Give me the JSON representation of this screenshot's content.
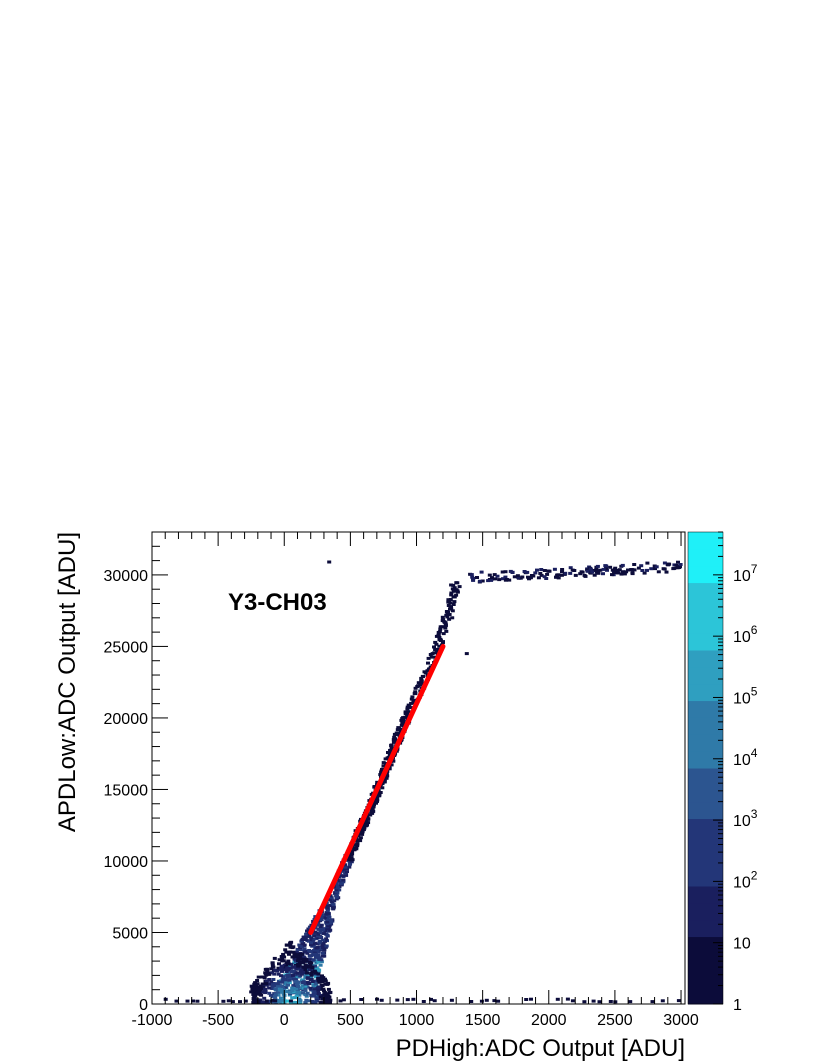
{
  "chart_data": {
    "type": "heatmap",
    "title": "",
    "annotation": "Y3-CH03",
    "xlabel": "PDHigh:ADC Output [ADU]",
    "ylabel": "APDLow:ADC Output [ADU]",
    "xlim": [
      -1000,
      3030
    ],
    "ylim": [
      0,
      33000
    ],
    "x_ticks": [
      -1000,
      -500,
      0,
      500,
      1000,
      1500,
      2000,
      2500,
      3000
    ],
    "x_tick_labels": [
      "-1000",
      "-500",
      "0",
      "500",
      "1000",
      "1500",
      "2000",
      "2500",
      "3000"
    ],
    "y_ticks": [
      0,
      5000,
      10000,
      15000,
      20000,
      25000,
      30000
    ],
    "y_tick_labels": [
      "0",
      "5000",
      "10000",
      "15000",
      "20000",
      "25000",
      "30000"
    ],
    "z_scale": "log",
    "zlim": [
      1,
      50000000
    ],
    "z_ticks": [
      1,
      10,
      100,
      1000,
      10000,
      100000,
      1000000,
      10000000
    ],
    "z_tick_labels": [
      "1",
      "10",
      "10^2",
      "10^3",
      "10^4",
      "10^5",
      "10^6",
      "10^7"
    ],
    "colormap": [
      "#0c0c3a",
      "#1a1f5e",
      "#233678",
      "#2c5590",
      "#2f7aa8",
      "#2f9fc0",
      "#2cc5d8",
      "#1ff0f8"
    ],
    "grid": false,
    "legend": "colorbar-right",
    "fit_line": {
      "color": "#ff0000",
      "x": [
        200,
        1200
      ],
      "y": [
        5000,
        25000
      ]
    },
    "band": {
      "description_points_x": [
        100,
        300,
        500,
        700,
        900,
        1100,
        1250,
        1300
      ],
      "description_points_y": [
        1500,
        6000,
        10500,
        14800,
        19500,
        23500,
        27500,
        29500
      ]
    },
    "saturation_plateau": {
      "x": [
        1400,
        3000
      ],
      "y": [
        29800,
        30800
      ]
    }
  }
}
